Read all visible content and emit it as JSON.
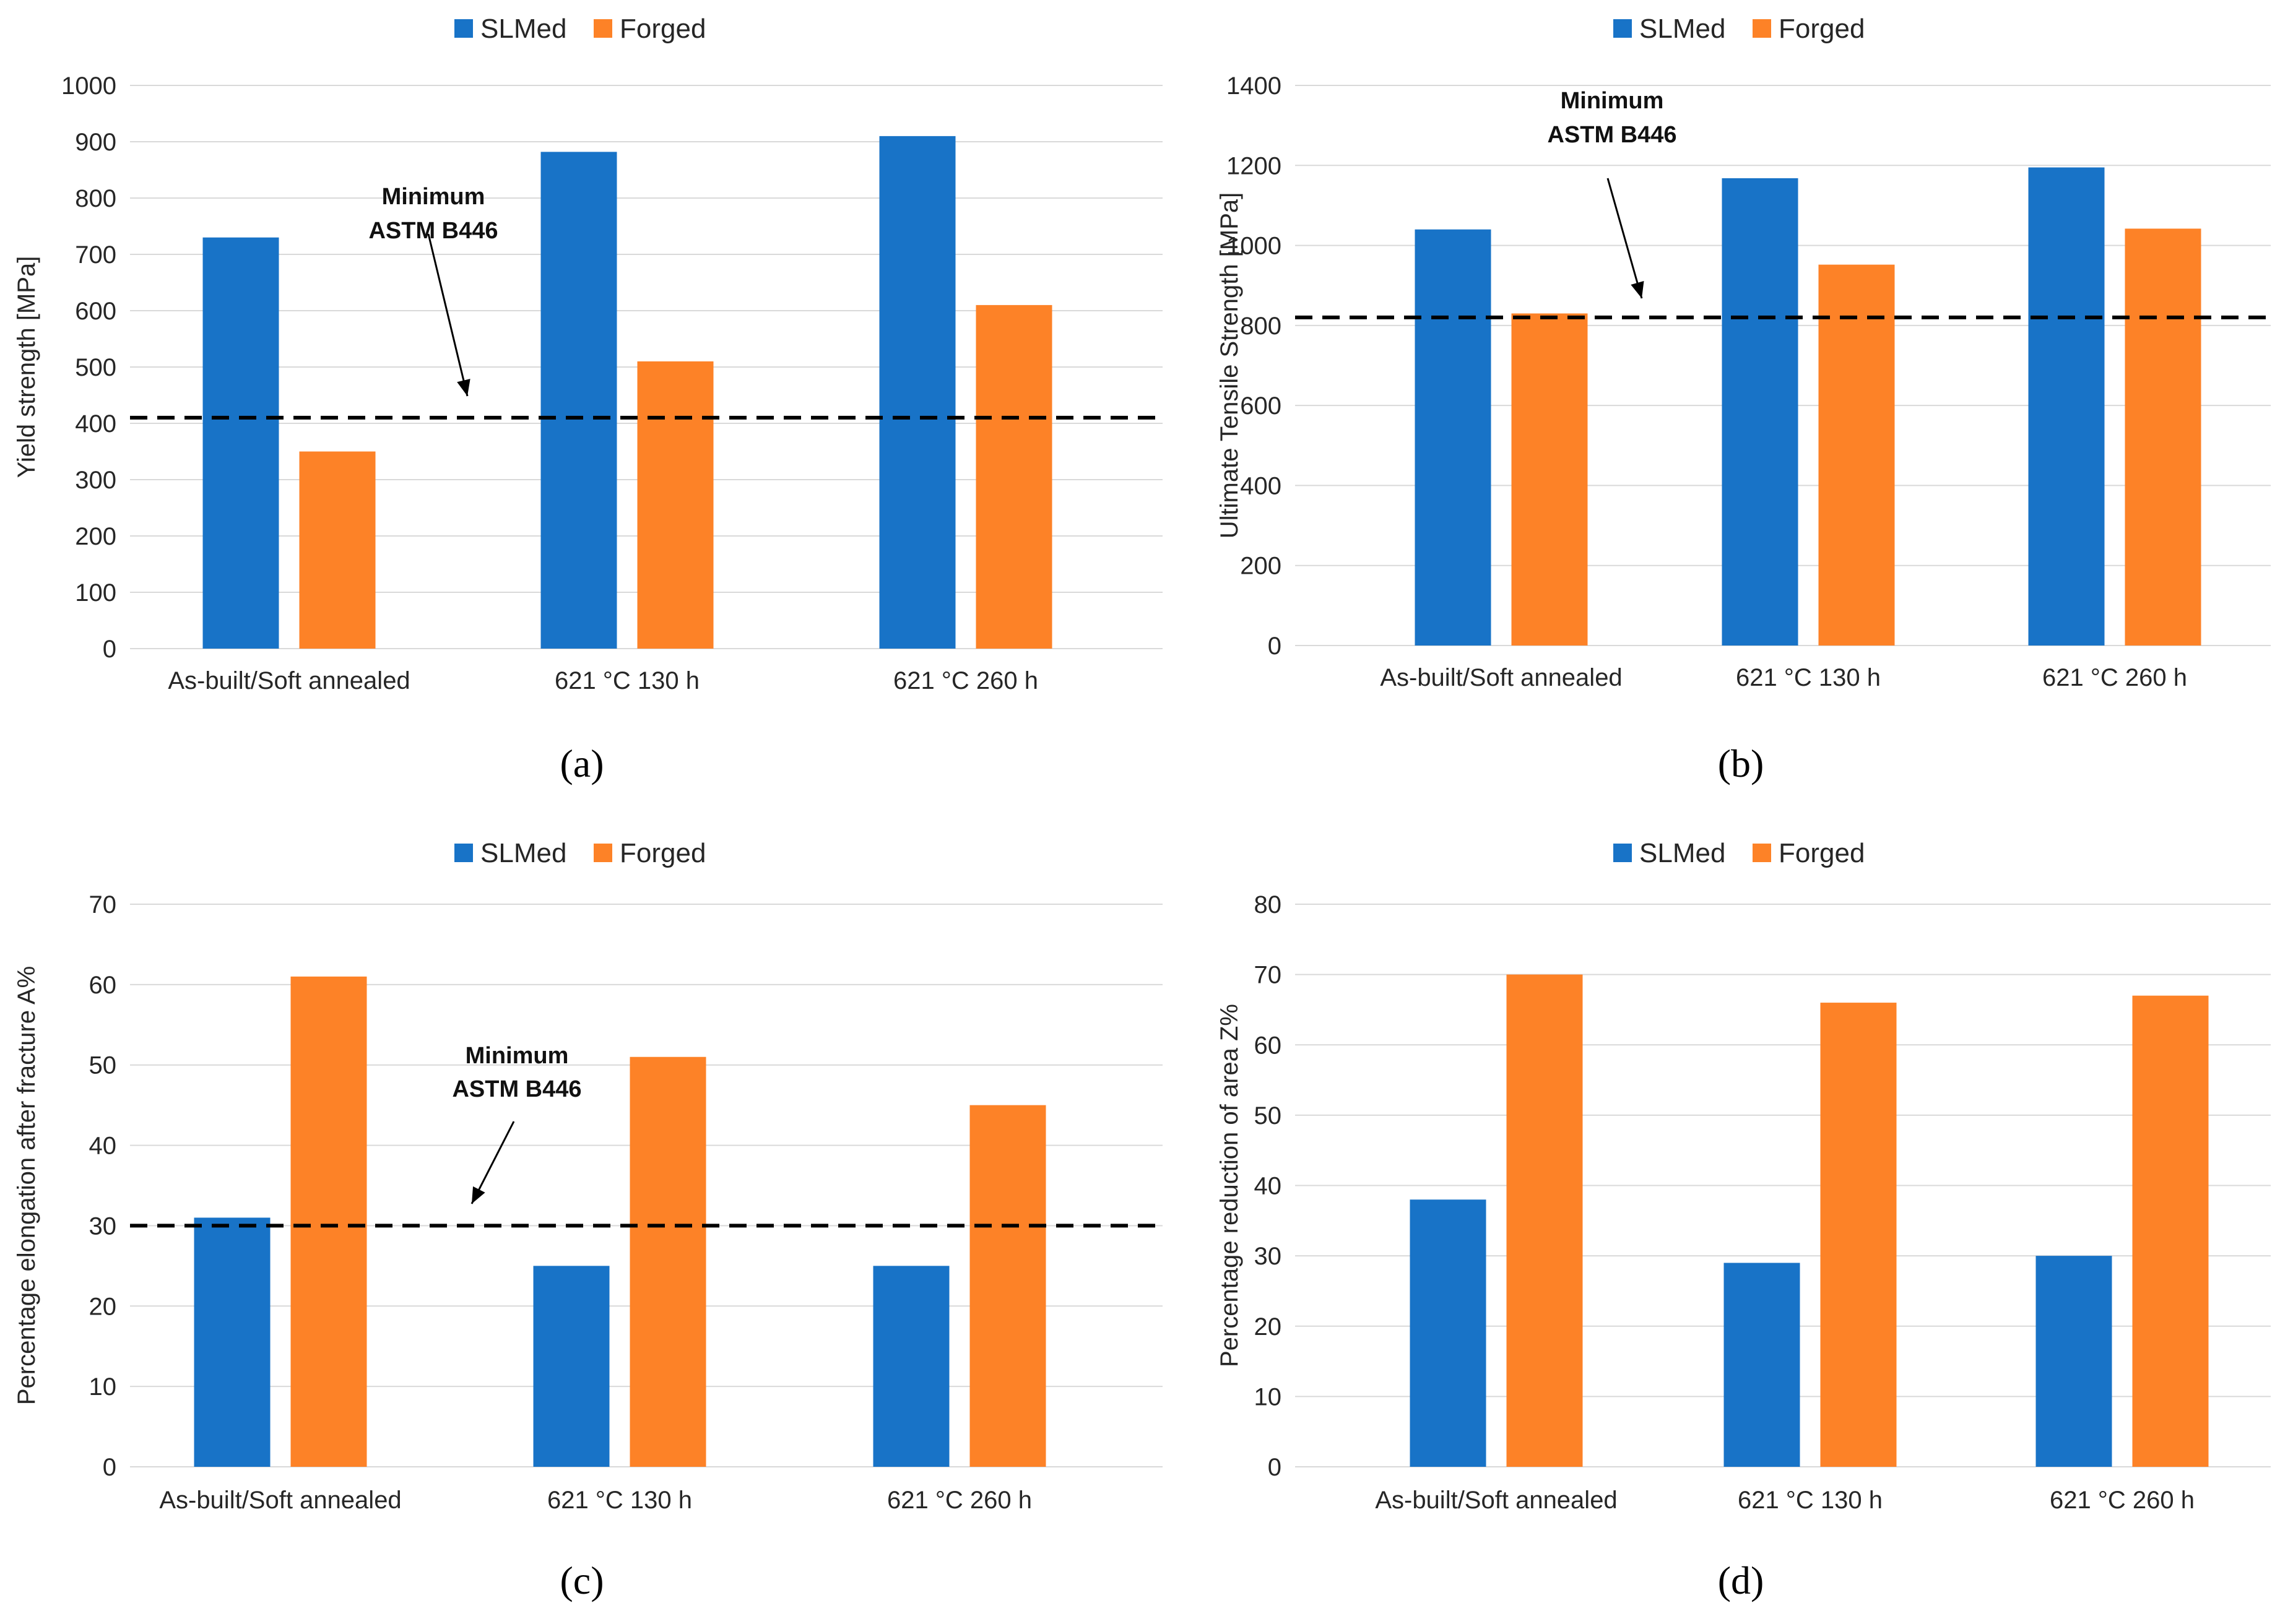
{
  "colors": {
    "slmed": "#1873c7",
    "forged": "#fd8227",
    "threshold": "#000000",
    "grid": "#d9d9d9"
  },
  "chart_data": [
    {
      "type": "bar",
      "panel_label": "(a)",
      "categories": [
        "As-built/Soft annealed",
        "621 °C 130 h",
        "621 °C 260 h"
      ],
      "series": [
        {
          "name": "SLMed",
          "values": [
            730,
            882,
            910
          ]
        },
        {
          "name": "Forged",
          "values": [
            350,
            510,
            610
          ]
        }
      ],
      "ylabel": "Yield strength [MPa]",
      "ylim": [
        0,
        1000
      ],
      "yticks": [
        0,
        100,
        200,
        300,
        400,
        500,
        600,
        700,
        800,
        900,
        1000
      ],
      "threshold": {
        "value": 410,
        "label_lines": [
          "Minimum",
          "ASTM B446"
        ]
      },
      "legend": "top-center"
    },
    {
      "type": "bar",
      "panel_label": "(b)",
      "categories": [
        "As-built/Soft annealed",
        "621 °C 130 h",
        "621 °C 260 h"
      ],
      "series": [
        {
          "name": "SLMed",
          "values": [
            1040,
            1168,
            1195
          ]
        },
        {
          "name": "Forged",
          "values": [
            830,
            952,
            1042
          ]
        }
      ],
      "ylabel": "Ultimate Tensile Strength [MPa]",
      "ylim": [
        0,
        1400
      ],
      "yticks": [
        0,
        200,
        400,
        600,
        800,
        1000,
        1200,
        1400
      ],
      "threshold": {
        "value": 820,
        "label_lines": [
          "Minimum",
          "ASTM B446"
        ]
      },
      "legend": "top-center"
    },
    {
      "type": "bar",
      "panel_label": "(c)",
      "categories": [
        "As-built/Soft annealed",
        "621 °C 130 h",
        "621 °C 260 h"
      ],
      "series": [
        {
          "name": "SLMed",
          "values": [
            31,
            25,
            25
          ]
        },
        {
          "name": "Forged",
          "values": [
            61,
            51,
            45
          ]
        }
      ],
      "ylabel": "Percentage elongation after fracture A%",
      "ylim": [
        0,
        70
      ],
      "yticks": [
        0,
        10,
        20,
        30,
        40,
        50,
        60,
        70
      ],
      "threshold": {
        "value": 30,
        "label_lines": [
          "Minimum",
          "ASTM B446"
        ]
      },
      "legend": "top-center"
    },
    {
      "type": "bar",
      "panel_label": "(d)",
      "categories": [
        "As-built/Soft annealed",
        "621 °C 130 h",
        "621 °C 260 h"
      ],
      "series": [
        {
          "name": "SLMed",
          "values": [
            38,
            29,
            30
          ]
        },
        {
          "name": "Forged",
          "values": [
            70,
            66,
            67
          ]
        }
      ],
      "ylabel": "Percentage reduction of area Z%",
      "ylim": [
        0,
        80
      ],
      "yticks": [
        0,
        10,
        20,
        30,
        40,
        50,
        60,
        70,
        80
      ],
      "threshold": null,
      "legend": "top-center"
    }
  ]
}
